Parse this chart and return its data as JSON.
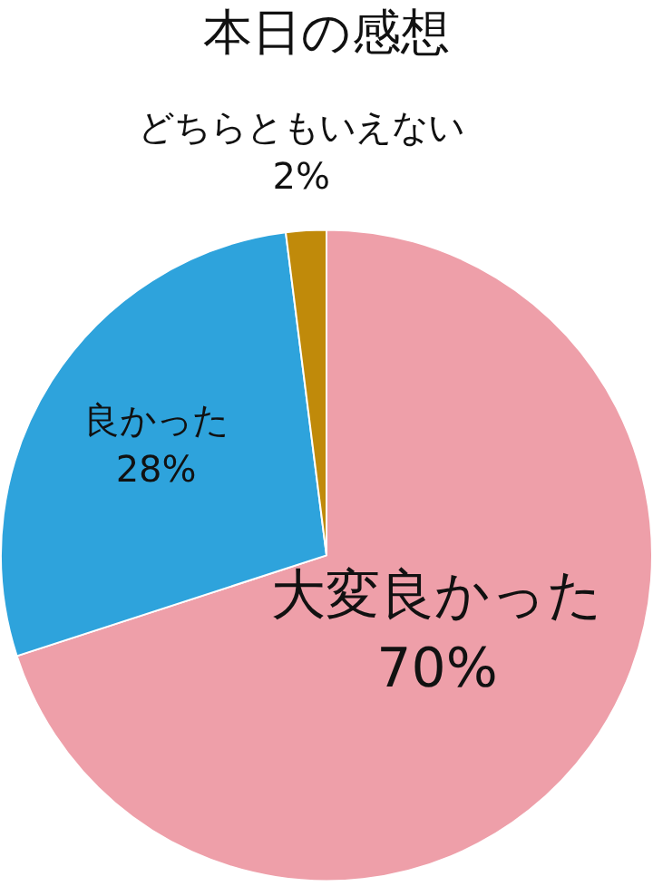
{
  "chart_data": {
    "type": "pie",
    "title": "本日の感想",
    "categories": [
      "大変良かった",
      "良かった",
      "どちらともいえない"
    ],
    "values": [
      70,
      28,
      2
    ],
    "value_labels": [
      "70%",
      "28%",
      "2%"
    ],
    "colors": [
      "#ee9fa9",
      "#2ea3dc",
      "#c08a0a"
    ]
  }
}
